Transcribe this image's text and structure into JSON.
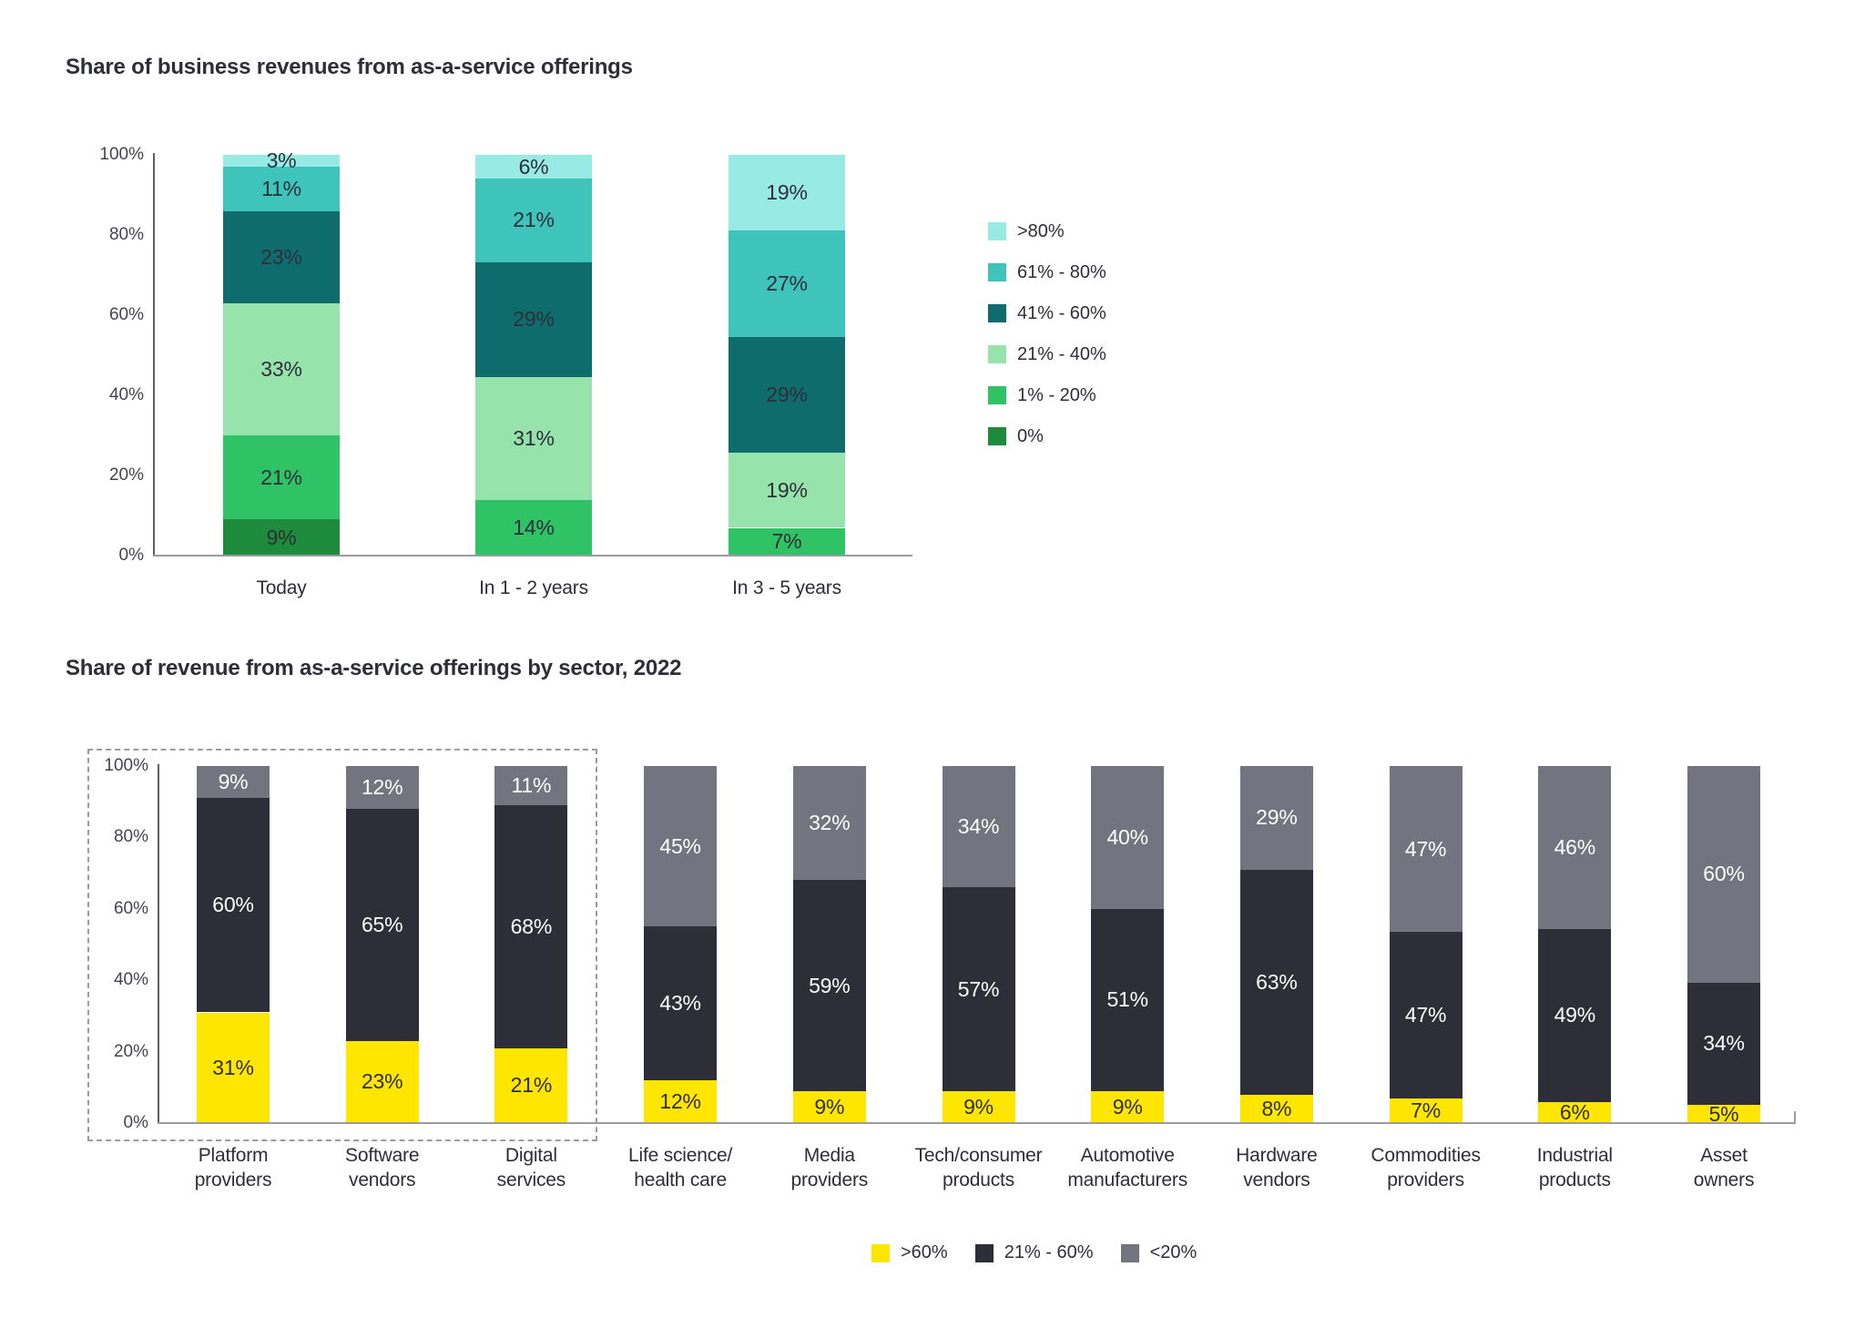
{
  "styles": {
    "background": "#FFFFFF",
    "title_color": "#2E2E38",
    "tick_color": "#44444E",
    "axis_color": "#5F5F68",
    "baseline_color": "#9B9BA1",
    "dashed_box_color": "#9B9BA1"
  },
  "chart_data": [
    {
      "type": "bar",
      "stacked": true,
      "title": "Share of business revenues from as-a-service offerings",
      "categories": [
        "Today",
        "In 1 - 2 years",
        "In 3 - 5 years"
      ],
      "y_ticks": [
        "0%",
        "20%",
        "40%",
        "60%",
        "80%",
        "100%"
      ],
      "ylim": [
        0,
        100
      ],
      "grid": false,
      "legend_position": "right",
      "series": [
        {
          "name": "0%",
          "color": "#1E8A3C",
          "label_color": "#2E2E38",
          "values": [
            9,
            0,
            0
          ]
        },
        {
          "name": "1% - 20%",
          "color": "#2FC365",
          "label_color": "#2E2E38",
          "values": [
            21,
            14,
            7
          ]
        },
        {
          "name": "21% - 40%",
          "color": "#96E3AC",
          "label_color": "#2E2E38",
          "values": [
            33,
            31,
            19
          ]
        },
        {
          "name": "41% - 60%",
          "color": "#0F6C6C",
          "label_color": "#2E2E38",
          "values": [
            23,
            29,
            29
          ]
        },
        {
          "name": "61% - 80%",
          "color": "#3FC4BC",
          "label_color": "#2E2E38",
          "values": [
            11,
            21,
            27
          ]
        },
        {
          "name": ">80%",
          "color": "#97EBE4",
          "label_color": "#2E2E38",
          "values": [
            3,
            6,
            19
          ]
        }
      ],
      "legend_order": [
        ">80%",
        "61% - 80%",
        "41% - 60%",
        "21% - 40%",
        "1% - 20%",
        "0%"
      ]
    },
    {
      "type": "bar",
      "stacked": true,
      "title": "Share of revenue from as-a-service offerings by sector, 2022",
      "categories": [
        "Platform\nproviders",
        "Software\nvendors",
        "Digital\nservices",
        "Life science/\nhealth care",
        "Media\nproviders",
        "Tech/consumer\nproducts",
        "Automotive\nmanufacturers",
        "Hardware\nvendors",
        "Commodities\nproviders",
        "Industrial\nproducts",
        "Asset\nowners"
      ],
      "y_ticks": [
        "0%",
        "20%",
        "40%",
        "60%",
        "80%",
        "100%"
      ],
      "ylim": [
        0,
        100
      ],
      "grid": false,
      "legend_position": "bottom",
      "series": [
        {
          "name": ">60%",
          "color": "#FFE600",
          "label_color": "#2E2E38",
          "values": [
            31,
            23,
            21,
            12,
            9,
            9,
            9,
            8,
            7,
            6,
            5
          ]
        },
        {
          "name": "21% - 60%",
          "color": "#2E2E38",
          "label_color": "#FFFFFF",
          "values": [
            60,
            65,
            68,
            43,
            59,
            57,
            51,
            63,
            47,
            49,
            34
          ]
        },
        {
          "name": "<20%",
          "color": "#747480",
          "label_color": "#FFFFFF",
          "values": [
            9,
            12,
            11,
            45,
            32,
            34,
            40,
            29,
            47,
            46,
            60
          ]
        }
      ],
      "legend_order": [
        ">60%",
        "21% - 60%",
        "<20%"
      ],
      "highlight_box_categories": [
        "Platform providers",
        "Software vendors",
        "Digital services"
      ]
    }
  ]
}
